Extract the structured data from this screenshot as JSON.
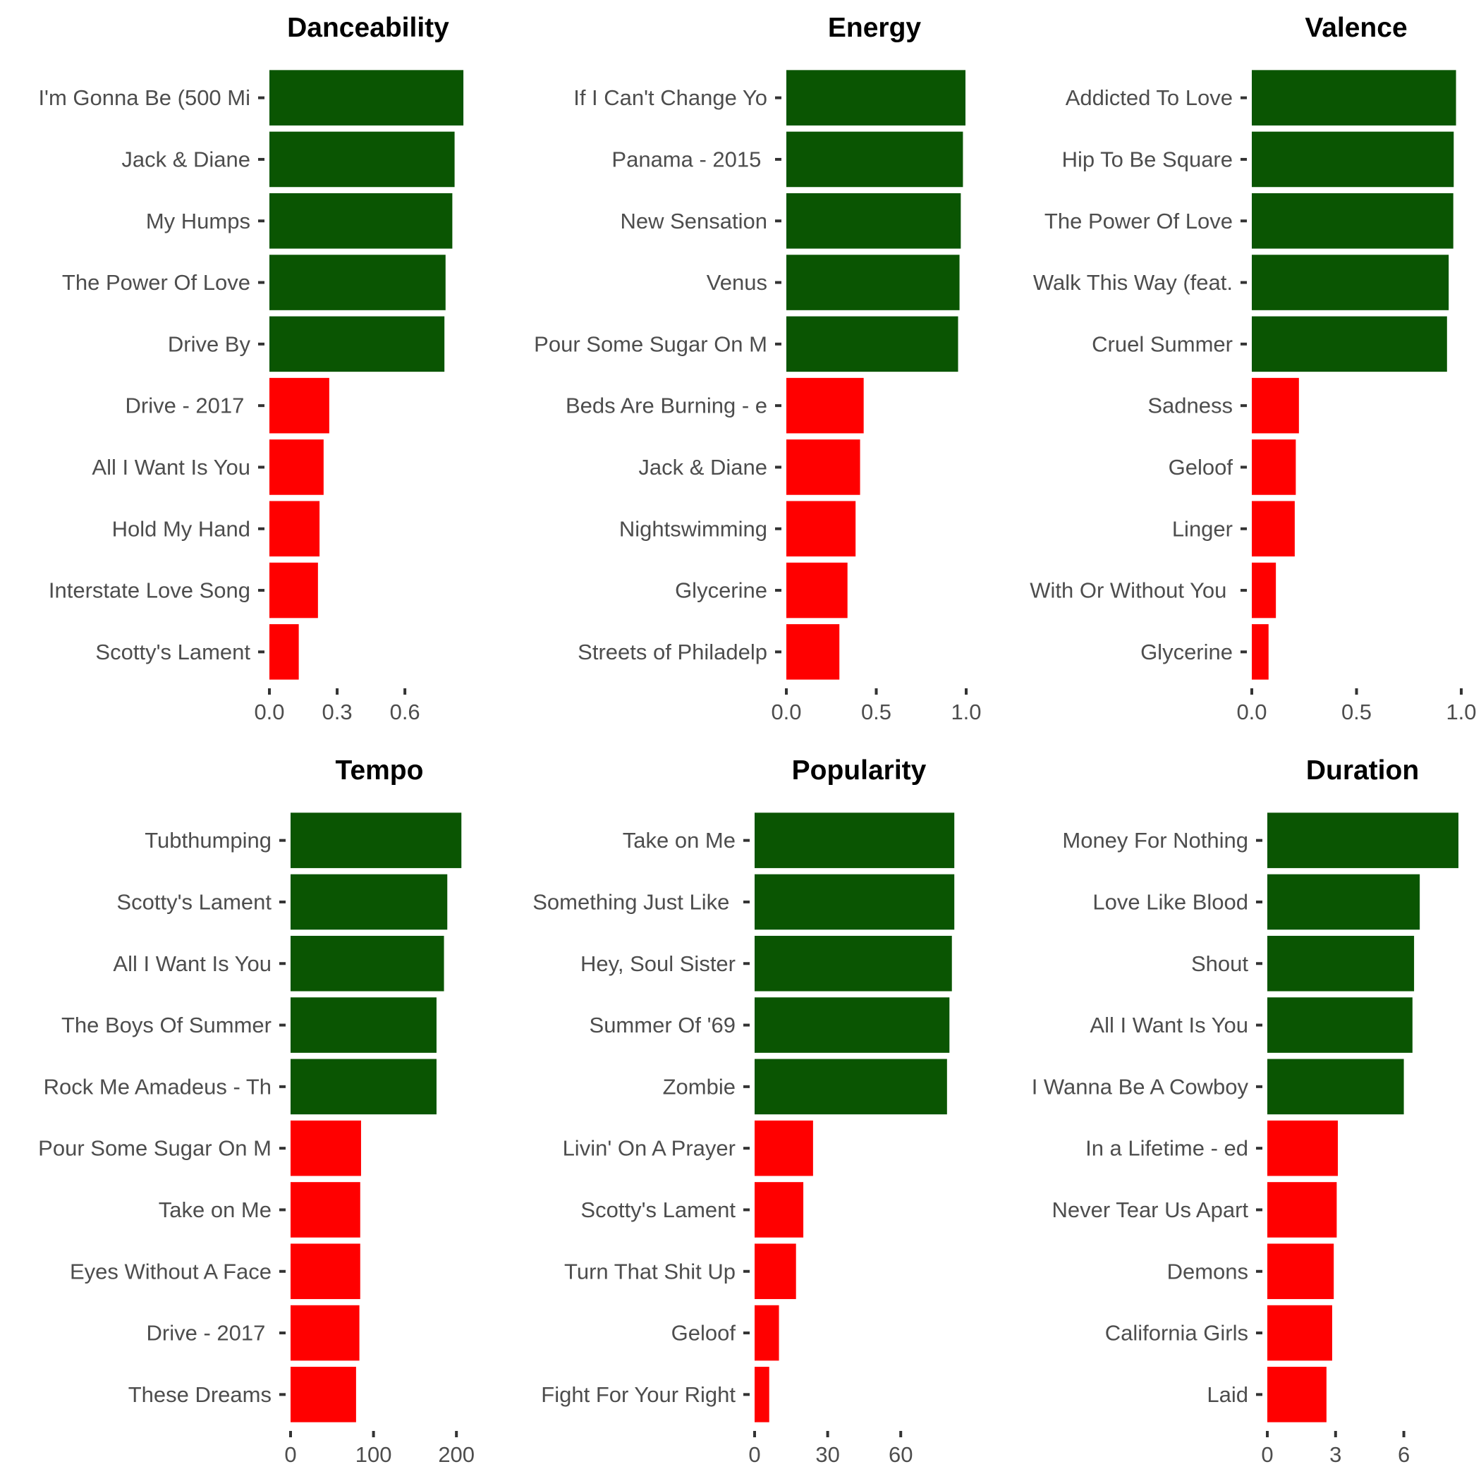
{
  "colors": {
    "high": "#0a5502",
    "low": "#ff0000"
  },
  "chart_data": [
    {
      "type": "bar",
      "orientation": "horizontal",
      "title": "Danceability",
      "categories": [
        "I'm Gonna Be (500 Mi",
        "Jack & Diane",
        "My Humps",
        "The Power Of Love",
        "Drive By",
        "Drive - 2017 ",
        "All I Want Is You",
        "Hold My Hand",
        "Interstate Love Song",
        "Scotty's Lament"
      ],
      "values": [
        0.859,
        0.82,
        0.81,
        0.78,
        0.775,
        0.265,
        0.24,
        0.222,
        0.215,
        0.13
      ],
      "groups": [
        "high",
        "high",
        "high",
        "high",
        "high",
        "low",
        "low",
        "low",
        "low",
        "low"
      ],
      "xlim": [
        0,
        0.89
      ],
      "xticks": [
        0,
        0.3,
        0.6
      ],
      "xtick_labels": [
        "0.0",
        "0.3",
        "0.6"
      ]
    },
    {
      "type": "bar",
      "orientation": "horizontal",
      "title": "Energy",
      "categories": [
        "If I Can't Change Yo",
        "Panama - 2015 ",
        "New Sensation",
        "Venus",
        "Pour Some Sugar On M",
        "Beds Are Burning - e",
        "Jack & Diane",
        "Nightswimming",
        "Glycerine",
        "Streets of Philadelp"
      ],
      "values": [
        0.996,
        0.982,
        0.97,
        0.963,
        0.955,
        0.43,
        0.41,
        0.385,
        0.34,
        0.295
      ],
      "groups": [
        "high",
        "high",
        "high",
        "high",
        "high",
        "low",
        "low",
        "low",
        "low",
        "low"
      ],
      "xlim": [
        0,
        1.0
      ],
      "xticks": [
        0,
        0.5,
        1.0
      ],
      "xtick_labels": [
        "0.0",
        "0.5",
        "1.0"
      ]
    },
    {
      "type": "bar",
      "orientation": "horizontal",
      "title": "Valence",
      "categories": [
        "Addicted To Love",
        "Hip To Be Square",
        "The Power Of Love",
        "Walk This Way (feat.",
        "Cruel Summer",
        "Sadness",
        "Geloof",
        "Linger",
        "With Or Without You ",
        "Glycerine"
      ],
      "values": [
        0.975,
        0.964,
        0.962,
        0.94,
        0.932,
        0.225,
        0.21,
        0.205,
        0.115,
        0.08
      ],
      "groups": [
        "high",
        "high",
        "high",
        "high",
        "high",
        "low",
        "low",
        "low",
        "low",
        "low"
      ],
      "xlim": [
        0,
        1.0
      ],
      "xticks": [
        0,
        0.5,
        1.0
      ],
      "xtick_labels": [
        "0.0",
        "0.5",
        "1.0"
      ]
    },
    {
      "type": "bar",
      "orientation": "horizontal",
      "title": "Tempo",
      "categories": [
        "Tubthumping",
        "Scotty's Lament",
        "All I Want Is You",
        "The Boys Of Summer",
        "Rock Me Amadeus - Th",
        "Pour Some Sugar On M",
        "Take on Me",
        "Eyes Without A Face",
        "Drive - 2017 ",
        "These Dreams"
      ],
      "values": [
        206,
        189,
        185,
        176,
        176,
        85,
        84,
        84,
        83,
        79
      ],
      "groups": [
        "high",
        "high",
        "high",
        "high",
        "high",
        "low",
        "low",
        "low",
        "low",
        "low"
      ],
      "xlim": [
        0,
        216
      ],
      "xticks": [
        0,
        100,
        200
      ],
      "xtick_labels": [
        "0",
        "100",
        "200"
      ]
    },
    {
      "type": "bar",
      "orientation": "horizontal",
      "title": "Popularity",
      "categories": [
        "Take on Me",
        "Something Just Like ",
        "Hey, Soul Sister",
        "Summer Of '69",
        "Zombie",
        "Livin' On A Prayer",
        "Scotty's Lament",
        "Turn That Shit Up",
        "Geloof",
        "Fight For Your Right"
      ],
      "values": [
        82,
        82,
        81,
        80,
        79,
        24,
        20,
        17,
        10,
        6
      ],
      "groups": [
        "high",
        "high",
        "high",
        "high",
        "high",
        "low",
        "low",
        "low",
        "low",
        "low"
      ],
      "xlim": [
        0,
        86
      ],
      "xticks": [
        0,
        30,
        60
      ],
      "xtick_labels": [
        "0",
        "30",
        "60"
      ]
    },
    {
      "type": "bar",
      "orientation": "horizontal",
      "title": "Duration",
      "categories": [
        "Money For Nothing",
        "Love Like Blood",
        "Shout",
        "All I Want Is You",
        "I Wanna Be A Cowboy",
        "In a Lifetime - ed",
        "Never Tear Us Apart",
        "Demons",
        "California Girls",
        "Laid"
      ],
      "values": [
        8.4,
        6.7,
        6.45,
        6.38,
        6.0,
        3.1,
        3.05,
        2.92,
        2.85,
        2.6
      ],
      "groups": [
        "high",
        "high",
        "high",
        "high",
        "high",
        "low",
        "low",
        "low",
        "low",
        "low"
      ],
      "xlim": [
        0,
        8.4
      ],
      "xticks": [
        0,
        3,
        6
      ],
      "xtick_labels": [
        "0",
        "3",
        "6"
      ]
    }
  ]
}
